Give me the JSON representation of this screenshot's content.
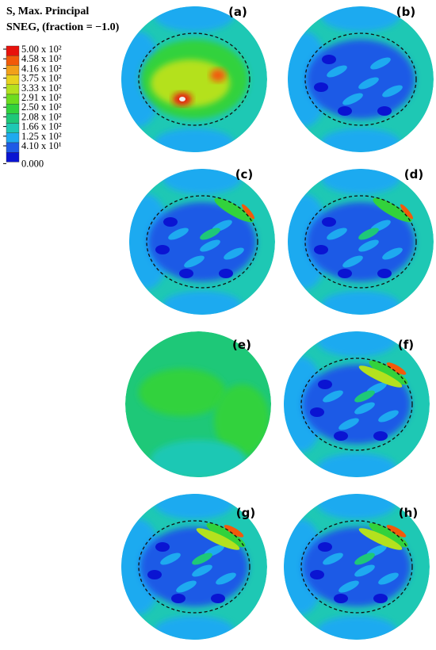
{
  "legend": {
    "title_lines": [
      "S, Max. Principal",
      "SNEG, (fraction = −1.0)"
    ],
    "labels": [
      "5.00 x 10²",
      "4.58 x 10²",
      "4.16 x 10²",
      "3.75 x 10²",
      "3.33 x 10²",
      "2.91 x 10²",
      "2.50 x 10²",
      "2.08 x 10²",
      "1.66 x 10²",
      "1.25 x 10²",
      "4.10 x 10¹",
      "0.000"
    ],
    "colors": [
      "#e8120c",
      "#f25a0a",
      "#f2a01a",
      "#e8d21e",
      "#b4e11e",
      "#6edc1e",
      "#32d23c",
      "#1ec878",
      "#1ec8b4",
      "#1eaaf0",
      "#1e5ae6",
      "#0a14d2"
    ]
  },
  "panels": [
    {
      "label": "(a)"
    },
    {
      "label": "(b)"
    },
    {
      "label": "(c)"
    },
    {
      "label": "(d)"
    },
    {
      "label": "(e)"
    },
    {
      "label": "(f)"
    },
    {
      "label": "(g)"
    },
    {
      "label": "(h)"
    }
  ]
}
